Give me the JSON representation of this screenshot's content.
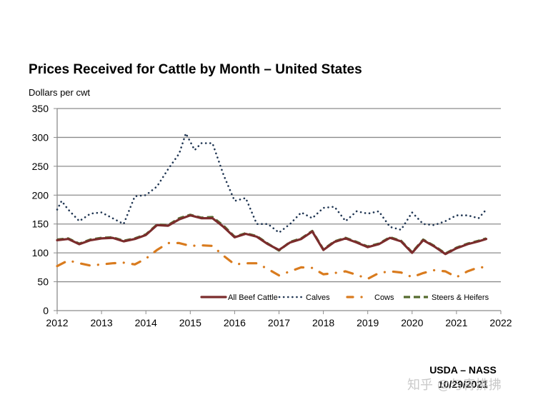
{
  "chart_data": {
    "type": "line",
    "title": "Prices Received for Cattle by Month – United States",
    "ylabel": "Dollars per cwt",
    "xlabel": "",
    "ylim": [
      0,
      350
    ],
    "xlim": [
      2012,
      2022
    ],
    "yticks": [
      0,
      50,
      100,
      150,
      200,
      250,
      300,
      350
    ],
    "xticks": [
      2012,
      2013,
      2014,
      2015,
      2016,
      2017,
      2018,
      2019,
      2020,
      2021,
      2022
    ],
    "grid": true,
    "legend_position": "bottom-right-inside",
    "x_note": "monthly values sampled quarterly, x in fractional years",
    "series": [
      {
        "name": "All Beef Cattle",
        "color": "#7b2c2c",
        "style": "solid",
        "x": [
          2012.0,
          2012.25,
          2012.5,
          2012.75,
          2013.0,
          2013.25,
          2013.5,
          2013.75,
          2014.0,
          2014.25,
          2014.5,
          2014.75,
          2015.0,
          2015.25,
          2015.5,
          2015.75,
          2016.0,
          2016.25,
          2016.5,
          2016.75,
          2017.0,
          2017.25,
          2017.5,
          2017.75,
          2018.0,
          2018.25,
          2018.5,
          2018.75,
          2019.0,
          2019.25,
          2019.5,
          2019.75,
          2020.0,
          2020.25,
          2020.5,
          2020.75,
          2021.0,
          2021.25,
          2021.5,
          2021.67
        ],
        "values": [
          122,
          124,
          115,
          122,
          125,
          126,
          120,
          124,
          131,
          148,
          147,
          158,
          165,
          160,
          160,
          145,
          127,
          133,
          128,
          115,
          105,
          118,
          124,
          137,
          105,
          119,
          125,
          118,
          110,
          115,
          126,
          120,
          100,
          122,
          111,
          98,
          108,
          115,
          120,
          124
        ]
      },
      {
        "name": "Calves",
        "color": "#1f3552",
        "style": "dotted",
        "x": [
          2012.0,
          2012.1,
          2012.25,
          2012.5,
          2012.75,
          2013.0,
          2013.25,
          2013.5,
          2013.75,
          2014.0,
          2014.25,
          2014.5,
          2014.75,
          2014.9,
          2015.1,
          2015.25,
          2015.5,
          2015.75,
          2016.0,
          2016.25,
          2016.5,
          2016.75,
          2017.0,
          2017.25,
          2017.5,
          2017.75,
          2018.0,
          2018.25,
          2018.5,
          2018.75,
          2019.0,
          2019.25,
          2019.5,
          2019.75,
          2020.0,
          2020.25,
          2020.5,
          2020.75,
          2021.0,
          2021.25,
          2021.5,
          2021.67
        ],
        "values": [
          175,
          190,
          175,
          155,
          168,
          170,
          160,
          150,
          198,
          200,
          215,
          245,
          272,
          307,
          278,
          290,
          290,
          235,
          190,
          195,
          150,
          150,
          135,
          150,
          170,
          160,
          178,
          180,
          155,
          172,
          168,
          172,
          145,
          140,
          170,
          150,
          148,
          155,
          165,
          165,
          160,
          175
        ]
      },
      {
        "name": "Cows",
        "color": "#d97b1e",
        "style": "dash-dot",
        "x": [
          2012.0,
          2012.25,
          2012.5,
          2012.75,
          2013.0,
          2013.25,
          2013.5,
          2013.75,
          2014.0,
          2014.25,
          2014.5,
          2014.75,
          2015.0,
          2015.25,
          2015.5,
          2015.75,
          2016.0,
          2016.25,
          2016.5,
          2016.75,
          2017.0,
          2017.25,
          2017.5,
          2017.75,
          2018.0,
          2018.25,
          2018.5,
          2018.75,
          2019.0,
          2019.25,
          2019.5,
          2019.75,
          2020.0,
          2020.25,
          2020.5,
          2020.75,
          2021.0,
          2021.25,
          2021.5,
          2021.67
        ],
        "values": [
          77,
          87,
          82,
          78,
          80,
          82,
          83,
          80,
          90,
          105,
          117,
          117,
          112,
          113,
          112,
          95,
          80,
          82,
          82,
          72,
          61,
          68,
          75,
          74,
          63,
          65,
          68,
          62,
          55,
          65,
          68,
          66,
          58,
          65,
          70,
          68,
          58,
          68,
          75,
          75
        ]
      },
      {
        "name": "Steers & Heifers",
        "color": "#556b2f",
        "style": "dashed",
        "x": [
          2012.0,
          2012.25,
          2012.5,
          2012.75,
          2013.0,
          2013.25,
          2013.5,
          2013.75,
          2014.0,
          2014.25,
          2014.5,
          2014.75,
          2015.0,
          2015.25,
          2015.5,
          2015.75,
          2016.0,
          2016.25,
          2016.5,
          2016.75,
          2017.0,
          2017.25,
          2017.5,
          2017.75,
          2018.0,
          2018.25,
          2018.5,
          2018.75,
          2019.0,
          2019.25,
          2019.5,
          2019.75,
          2020.0,
          2020.25,
          2020.5,
          2020.75,
          2021.0,
          2021.25,
          2021.5,
          2021.67
        ],
        "values": [
          123,
          125,
          116,
          123,
          126,
          127,
          121,
          125,
          132,
          149,
          148,
          160,
          166,
          161,
          162,
          147,
          128,
          134,
          129,
          116,
          104,
          119,
          125,
          138,
          106,
          120,
          126,
          119,
          111,
          116,
          127,
          121,
          101,
          123,
          112,
          99,
          109,
          116,
          121,
          125
        ]
      }
    ]
  },
  "footer": {
    "source": "USDA – NASS",
    "date": "10/29/2021"
  },
  "watermark": "知乎 @与青拂拂"
}
